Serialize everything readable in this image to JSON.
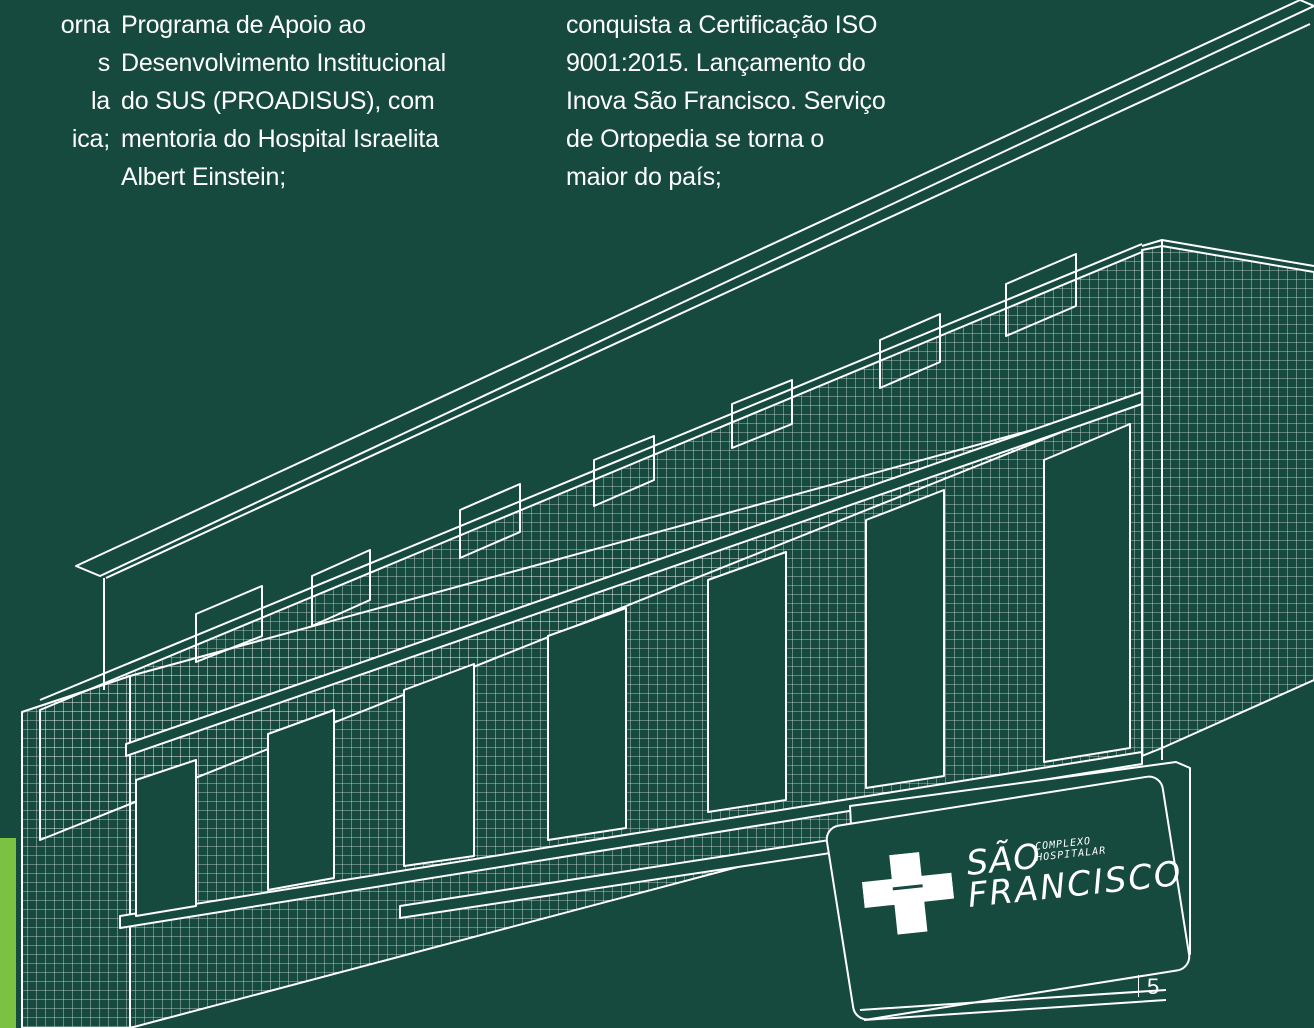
{
  "timeline": {
    "left_fragment": "orna\ns\nla\nica;",
    "middle_text": "Programa de Apoio ao\nDesenvolvimento Institucional\ndo SUS (PROADISUS), com\nmentoria do Hospital Israelita\nAlbert Einstein;",
    "right_text": "conquista a Certificação ISO\n9001:2015. Lançamento do\nInova São Francisco. Serviço\nde Ortopedia se torna o\nmaior do país;"
  },
  "logo": {
    "line1": "SÃO",
    "complexo": "COMPLEXO\nHOSPITALAR",
    "line2": "FRANCISCO"
  },
  "page": {
    "number": "5"
  },
  "colors": {
    "background": "#174a3e",
    "accent": "#7cc242",
    "line": "#ffffff"
  }
}
